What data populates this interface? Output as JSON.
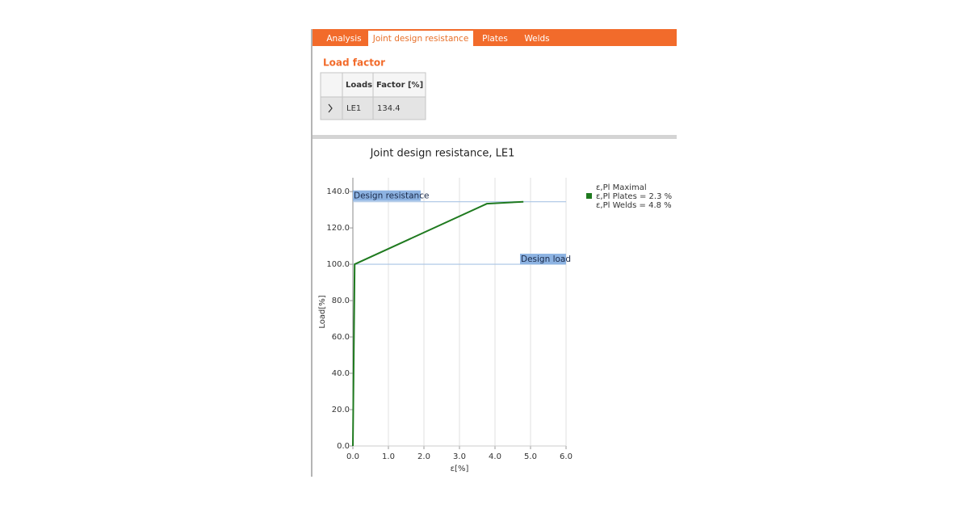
{
  "tabs": [
    "Analysis",
    "Joint design resistance",
    "Plates",
    "Welds"
  ],
  "active_tab": 1,
  "section_title": "Load factor",
  "table": {
    "columns": [
      "Loads",
      "Factor [%]"
    ],
    "rows": [
      [
        "LE1",
        134.4
      ]
    ]
  },
  "chart_data": {
    "type": "line",
    "title": "Joint design resistance, LE1",
    "x_label": "ε[%]",
    "y_label": "Load[%]",
    "x": [
      0,
      0.05,
      3.77,
      4.8
    ],
    "series": [
      {
        "name": "ε,Pl Plates = 2.3 %",
        "color": "#1f7a1f",
        "values": [
          0,
          100,
          133.3,
          134.4
        ]
      }
    ],
    "legend_header": "ε,Pl Maximal",
    "legend_footer": "ε,Pl Welds = 4.8 %",
    "reference_lines": [
      {
        "label": "Design resistance",
        "value": 134.4,
        "label_side": "left"
      },
      {
        "label": "Design load",
        "value": 100,
        "label_side": "right"
      }
    ],
    "xlim": [
      0,
      6
    ],
    "ylim": [
      0,
      147.6
    ],
    "xticks": [
      {
        "value": 0,
        "label": "0.0"
      },
      {
        "value": 1,
        "label": "1.0"
      },
      {
        "value": 2,
        "label": "2.0"
      },
      {
        "value": 3,
        "label": "3.0"
      },
      {
        "value": 4,
        "label": "4.0"
      },
      {
        "value": 5,
        "label": "5.0"
      },
      {
        "value": 6,
        "label": "6.0"
      }
    ],
    "yticks": [
      {
        "value": 0,
        "label": "0.0"
      },
      {
        "value": 20,
        "label": "20.0"
      },
      {
        "value": 40,
        "label": "40.0"
      },
      {
        "value": 60,
        "label": "60.0"
      },
      {
        "value": 80,
        "label": "80.0"
      },
      {
        "value": 100,
        "label": "100.0"
      },
      {
        "value": 120,
        "label": "120.0"
      },
      {
        "value": 140,
        "label": "140.0"
      }
    ],
    "grid": "x"
  }
}
